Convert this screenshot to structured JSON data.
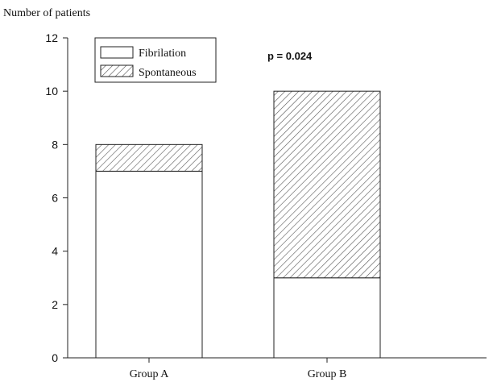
{
  "chart_data": {
    "type": "bar",
    "stacked": true,
    "ylabel": "Number of patients",
    "ylim": [
      0,
      12
    ],
    "yticks": [
      0,
      2,
      4,
      6,
      8,
      10,
      12
    ],
    "categories": [
      "Group A",
      "Group B"
    ],
    "series": [
      {
        "name": "Fibrilation",
        "values": [
          7,
          3
        ],
        "fill": "#ffffff"
      },
      {
        "name": "Spontaneous",
        "values": [
          1,
          7
        ],
        "fill": "hatch"
      }
    ],
    "annotation": "p = 0.024",
    "legend_position": "top-left",
    "grid": false
  }
}
